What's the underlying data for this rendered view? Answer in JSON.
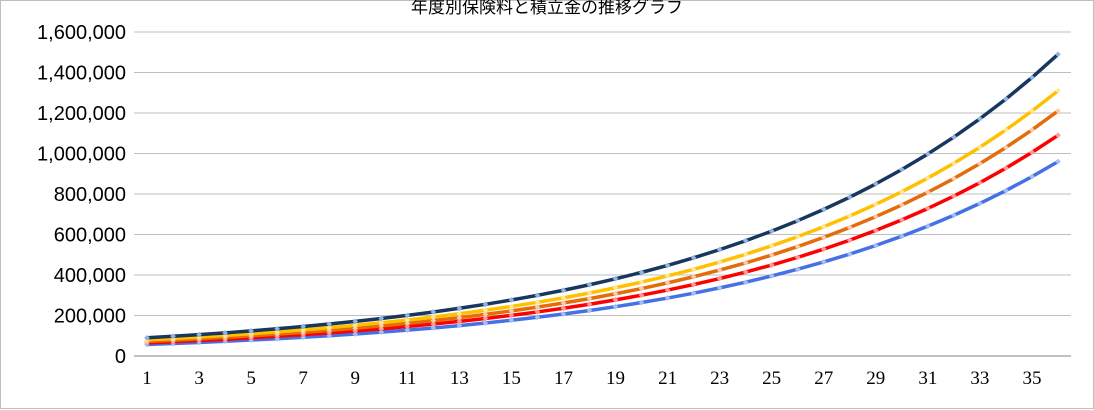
{
  "chart_data": {
    "type": "line",
    "title": "年度別保険料と積立金の推移グラフ",
    "xlabel": "",
    "ylabel": "",
    "x_range": [
      1,
      36
    ],
    "x_tick_labels": [
      "1",
      "3",
      "5",
      "7",
      "9",
      "11",
      "13",
      "15",
      "17",
      "19",
      "21",
      "23",
      "25",
      "27",
      "29",
      "31",
      "33",
      "35"
    ],
    "ylim": [
      0,
      1600000
    ],
    "y_tick_labels": [
      "0",
      "200,000",
      "400,000",
      "600,000",
      "800,000",
      "1,000,000",
      "1,200,000",
      "1,400,000",
      "1,600,000"
    ],
    "y_ticks": [
      0,
      200000,
      400000,
      600000,
      800000,
      1000000,
      1200000,
      1400000,
      1600000
    ],
    "grid": "horizontal",
    "legend": "none",
    "series": [
      {
        "color": "#17375e",
        "marker_color": "#8fb4e3",
        "start": 90000,
        "end": 1490000
      },
      {
        "color": "#ffc000",
        "marker_color": "#ffe699",
        "start": 80000,
        "end": 1310000
      },
      {
        "color": "#e46c0a",
        "marker_color": "#f8cbad",
        "start": 72000,
        "end": 1210000
      },
      {
        "color": "#ff0000",
        "marker_color": "#ff9999",
        "start": 65000,
        "end": 1090000
      },
      {
        "color": "#4472e4",
        "marker_color": "#a6bdf0",
        "start": 57000,
        "end": 960000
      }
    ]
  }
}
